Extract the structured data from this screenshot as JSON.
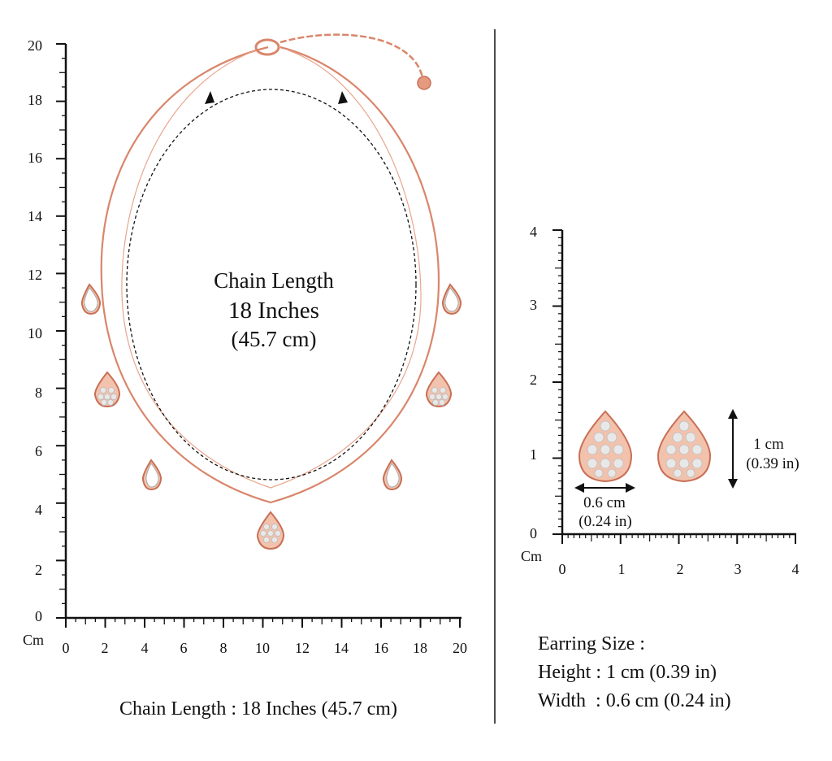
{
  "necklace_panel": {
    "unit_label": "Cm",
    "x_ticks": [
      "0",
      "2",
      "4",
      "6",
      "8",
      "10",
      "12",
      "14",
      "16",
      "18",
      "20"
    ],
    "y_ticks": [
      "0",
      "2",
      "4",
      "6",
      "8",
      "10",
      "12",
      "14",
      "16",
      "18",
      "20"
    ],
    "overlay_line1": "Chain Length",
    "overlay_line2": "18 Inches",
    "overlay_line3": "(45.7 cm)",
    "caption": "Chain Length : 18 Inches (45.7 cm)"
  },
  "earring_panel": {
    "unit_label": "Cm",
    "x_ticks": [
      "0",
      "1",
      "2",
      "3",
      "4"
    ],
    "y_ticks": [
      "0",
      "1",
      "2",
      "3",
      "4"
    ],
    "height_label_cm": "1 cm",
    "height_label_in": "(0.39 in)",
    "width_label_cm": "0.6 cm",
    "width_label_in": "(0.24 in)",
    "size_title": "Earring Size :",
    "size_height": "Height : 1 cm (0.39 in)",
    "size_width": "Width  : 0.6 cm (0.24 in)"
  },
  "colors": {
    "rose_gold": "#d9866b",
    "gem": "#ffffff",
    "ink": "#111111"
  }
}
